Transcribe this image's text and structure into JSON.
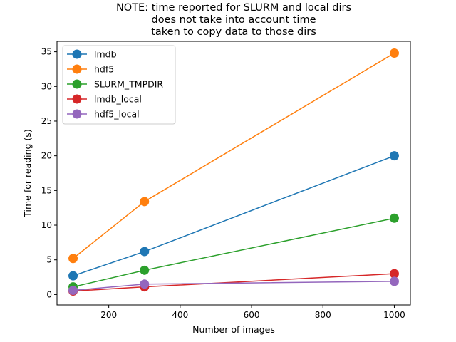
{
  "chart_data": {
    "type": "line",
    "title_lines": [
      "NOTE: time reported for SLURM and local dirs",
      "does not take into account time",
      "taken to copy data to those dirs"
    ],
    "xlabel": "Number of images",
    "ylabel": "Time for reading (s)",
    "xlim": [
      55,
      1045
    ],
    "ylim": [
      -1.5,
      36.5
    ],
    "xticks": [
      200,
      400,
      600,
      800,
      1000
    ],
    "yticks": [
      0,
      5,
      10,
      15,
      20,
      25,
      30,
      35
    ],
    "grid": false,
    "legend_position": "top-left",
    "x": [
      100,
      300,
      1000
    ],
    "series": [
      {
        "name": "lmdb",
        "color": "#1f77b4",
        "values": [
          2.7,
          6.2,
          20.0
        ]
      },
      {
        "name": "hdf5",
        "color": "#ff7f0e",
        "values": [
          5.2,
          13.4,
          34.8
        ]
      },
      {
        "name": "SLURM_TMPDIR",
        "color": "#2ca02c",
        "values": [
          1.1,
          3.5,
          11.0
        ]
      },
      {
        "name": "lmdb_local",
        "color": "#d62728",
        "values": [
          0.5,
          1.1,
          3.0
        ]
      },
      {
        "name": "hdf5_local",
        "color": "#9467bd",
        "values": [
          0.6,
          1.5,
          1.9
        ]
      }
    ]
  }
}
